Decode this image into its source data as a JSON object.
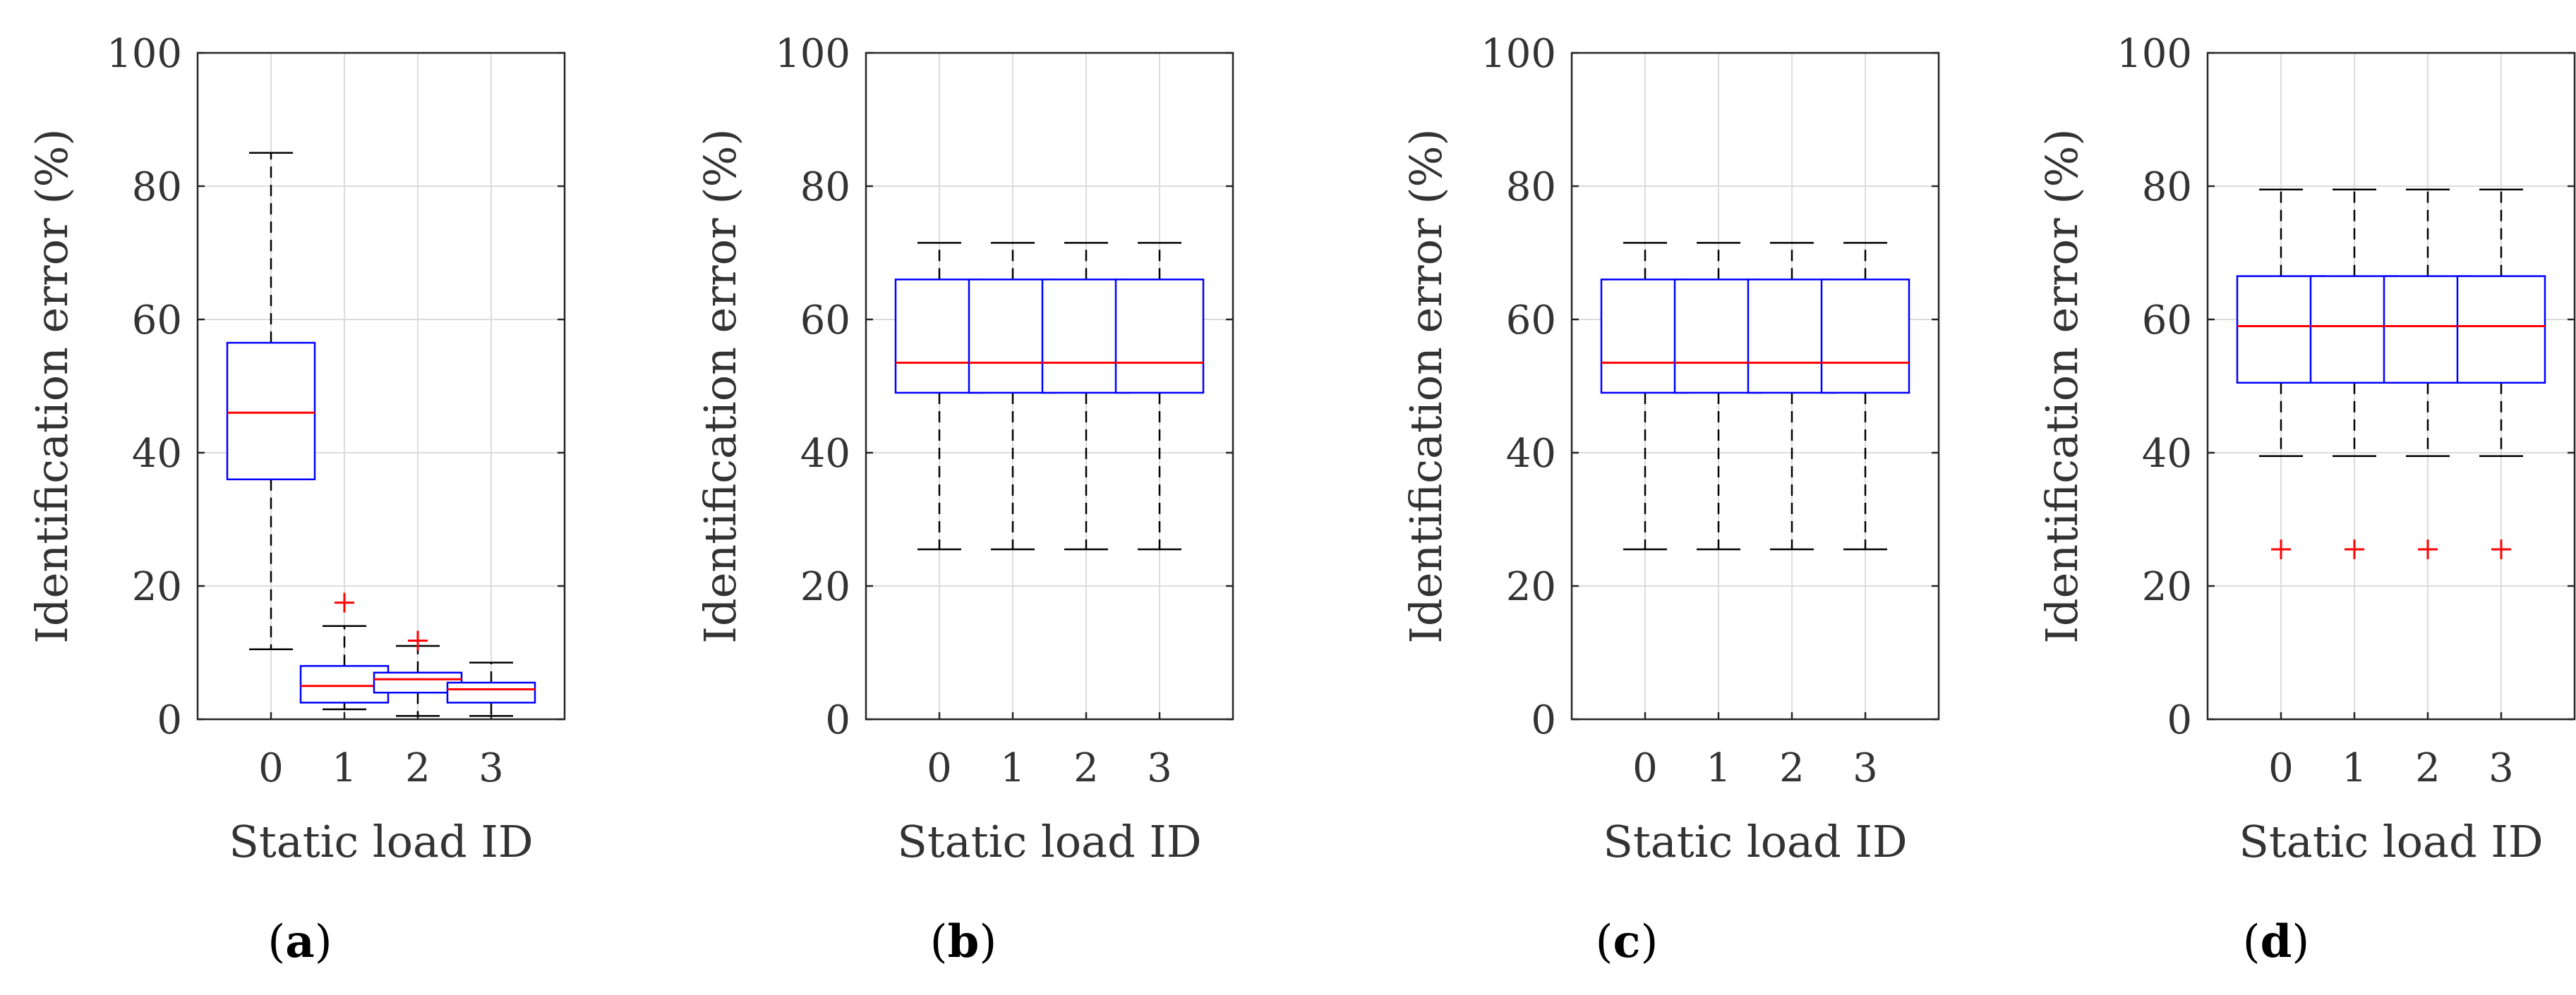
{
  "figure": {
    "panel_labels": [
      {
        "open": "(",
        "letter": "a",
        "close": ")"
      },
      {
        "open": "(",
        "letter": "b",
        "close": ")"
      },
      {
        "open": "(",
        "letter": "c",
        "close": ")"
      },
      {
        "open": "(",
        "letter": "d",
        "close": ")"
      }
    ]
  },
  "colors": {
    "box": "#0000ff",
    "median": "#ff0000",
    "whisker": "#000000",
    "outlier": "#ff0000",
    "grid": "#dcdcdc",
    "axis": "#262626"
  },
  "chart_data": [
    {
      "type": "boxplot",
      "panel": "a",
      "xlabel": "Static load ID",
      "ylabel": "Identification error (%)",
      "ylim": [
        0,
        100
      ],
      "yticks": [
        0,
        20,
        40,
        60,
        80,
        100
      ],
      "categories": [
        "0",
        "1",
        "2",
        "3"
      ],
      "grid": true,
      "boxes": [
        {
          "id": "0",
          "whisker_low": 10.5,
          "q1": 36,
          "median": 46,
          "q3": 56.5,
          "whisker_high": 85,
          "outliers": []
        },
        {
          "id": "1",
          "whisker_low": 1.5,
          "q1": 2.5,
          "median": 5,
          "q3": 8,
          "whisker_high": 14,
          "outliers": [
            17.5
          ]
        },
        {
          "id": "2",
          "whisker_low": 0.5,
          "q1": 4,
          "median": 6,
          "q3": 7,
          "whisker_high": 11,
          "outliers": [
            11.8
          ]
        },
        {
          "id": "3",
          "whisker_low": 0.5,
          "q1": 2.5,
          "median": 4.5,
          "q3": 5.5,
          "whisker_high": 8.5,
          "outliers": []
        }
      ]
    },
    {
      "type": "boxplot",
      "panel": "b",
      "xlabel": "Static load ID",
      "ylabel": "Identification error (%)",
      "ylim": [
        0,
        100
      ],
      "yticks": [
        0,
        20,
        40,
        60,
        80,
        100
      ],
      "categories": [
        "0",
        "1",
        "2",
        "3"
      ],
      "grid": true,
      "boxes": [
        {
          "id": "0",
          "whisker_low": 25.5,
          "q1": 49,
          "median": 53.5,
          "q3": 66,
          "whisker_high": 71.5,
          "outliers": []
        },
        {
          "id": "1",
          "whisker_low": 25.5,
          "q1": 49,
          "median": 53.5,
          "q3": 66,
          "whisker_high": 71.5,
          "outliers": []
        },
        {
          "id": "2",
          "whisker_low": 25.5,
          "q1": 49,
          "median": 53.5,
          "q3": 66,
          "whisker_high": 71.5,
          "outliers": []
        },
        {
          "id": "3",
          "whisker_low": 25.5,
          "q1": 49,
          "median": 53.5,
          "q3": 66,
          "whisker_high": 71.5,
          "outliers": []
        }
      ]
    },
    {
      "type": "boxplot",
      "panel": "c",
      "xlabel": "Static load ID",
      "ylabel": "Identification error (%)",
      "ylim": [
        0,
        100
      ],
      "yticks": [
        0,
        20,
        40,
        60,
        80,
        100
      ],
      "categories": [
        "0",
        "1",
        "2",
        "3"
      ],
      "grid": true,
      "boxes": [
        {
          "id": "0",
          "whisker_low": 25.5,
          "q1": 49,
          "median": 53.5,
          "q3": 66,
          "whisker_high": 71.5,
          "outliers": []
        },
        {
          "id": "1",
          "whisker_low": 25.5,
          "q1": 49,
          "median": 53.5,
          "q3": 66,
          "whisker_high": 71.5,
          "outliers": []
        },
        {
          "id": "2",
          "whisker_low": 25.5,
          "q1": 49,
          "median": 53.5,
          "q3": 66,
          "whisker_high": 71.5,
          "outliers": []
        },
        {
          "id": "3",
          "whisker_low": 25.5,
          "q1": 49,
          "median": 53.5,
          "q3": 66,
          "whisker_high": 71.5,
          "outliers": []
        }
      ]
    },
    {
      "type": "boxplot",
      "panel": "d",
      "xlabel": "Static load ID",
      "ylabel": "Identification error (%)",
      "ylim": [
        0,
        100
      ],
      "yticks": [
        0,
        20,
        40,
        60,
        80,
        100
      ],
      "categories": [
        "0",
        "1",
        "2",
        "3"
      ],
      "grid": true,
      "boxes": [
        {
          "id": "0",
          "whisker_low": 39.5,
          "q1": 50.5,
          "median": 59,
          "q3": 66.5,
          "whisker_high": 79.5,
          "outliers": [
            25.5
          ]
        },
        {
          "id": "1",
          "whisker_low": 39.5,
          "q1": 50.5,
          "median": 59,
          "q3": 66.5,
          "whisker_high": 79.5,
          "outliers": [
            25.5
          ]
        },
        {
          "id": "2",
          "whisker_low": 39.5,
          "q1": 50.5,
          "median": 59,
          "q3": 66.5,
          "whisker_high": 79.5,
          "outliers": [
            25.5
          ]
        },
        {
          "id": "3",
          "whisker_low": 39.5,
          "q1": 50.5,
          "median": 59,
          "q3": 66.5,
          "whisker_high": 79.5,
          "outliers": [
            25.5
          ]
        }
      ]
    }
  ]
}
